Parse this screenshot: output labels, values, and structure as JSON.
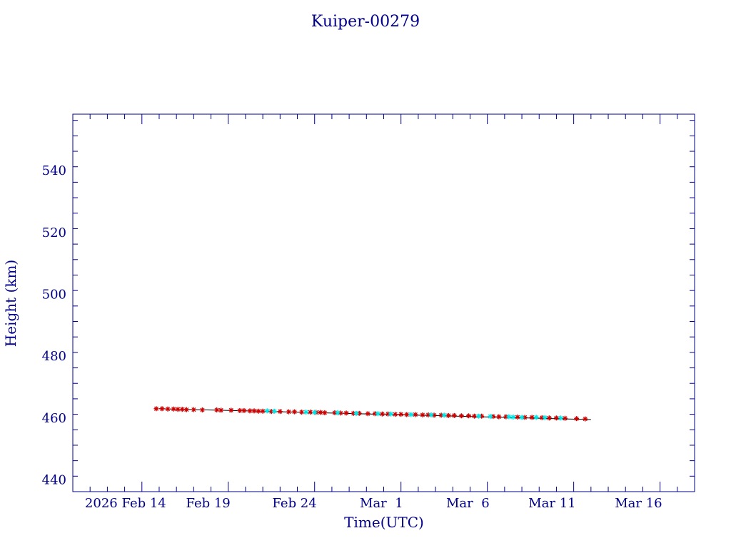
{
  "chart_data": {
    "type": "scatter",
    "title": "Kuiper-00279",
    "xlabel": "Time(UTC)",
    "ylabel": "Height (km)",
    "x_axis": {
      "start": "2026-02-10",
      "end": "2026-03-18",
      "ticks": [
        {
          "date": "2026-02-14",
          "label": "2026 Feb 14"
        },
        {
          "date": "2026-02-19",
          "label": "Feb 19"
        },
        {
          "date": "2026-02-24",
          "label": "Feb 24"
        },
        {
          "date": "2026-03-01",
          "label": "Mar  1"
        },
        {
          "date": "2026-03-06",
          "label": "Mar  6"
        },
        {
          "date": "2026-03-11",
          "label": "Mar 11"
        },
        {
          "date": "2026-03-16",
          "label": "Mar 16"
        }
      ]
    },
    "ylim": [
      436,
      558
    ],
    "yticks": [
      440,
      460,
      480,
      500,
      520,
      540
    ],
    "grid": false,
    "fit_line": {
      "x": [
        "2026-02-15",
        "2026-03-12"
      ],
      "y": [
        462.8,
        459.3
      ]
    },
    "series": [
      {
        "color": "#cc0000",
        "marker": "star",
        "x": [
          "2026-02-14T20:00",
          "2026-02-15T04:00",
          "2026-02-15T12:00",
          "2026-02-15T20:00",
          "2026-02-16T02:00",
          "2026-02-16T08:00",
          "2026-02-16T14:00",
          "2026-02-17T00:00",
          "2026-02-17T12:00",
          "2026-02-18T08:00",
          "2026-02-18T14:00",
          "2026-02-19T04:00",
          "2026-02-19T16:00",
          "2026-02-19T22:00",
          "2026-02-20T06:00",
          "2026-02-20T12:00",
          "2026-02-20T18:00",
          "2026-02-21T00:00",
          "2026-02-21T12:00",
          "2026-02-22T00:00",
          "2026-02-22T12:00",
          "2026-02-22T20:00",
          "2026-02-23T06:00",
          "2026-02-23T18:00",
          "2026-02-24T02:00",
          "2026-02-24T08:00",
          "2026-02-24T14:00",
          "2026-02-25T04:00",
          "2026-02-25T12:00",
          "2026-02-25T20:00",
          "2026-02-26T06:00",
          "2026-02-26T14:00",
          "2026-02-27T02:00",
          "2026-02-27T12:00",
          "2026-02-27T22:00",
          "2026-02-28T06:00",
          "2026-02-28T16:00",
          "2026-03-01T00:00",
          "2026-03-01T08:00",
          "2026-03-01T20:00",
          "2026-03-02T06:00",
          "2026-03-02T14:00",
          "2026-03-02T22:00",
          "2026-03-03T08:00",
          "2026-03-03T18:00",
          "2026-03-04T02:00",
          "2026-03-04T12:00",
          "2026-03-04T22:00",
          "2026-03-05T06:00",
          "2026-03-05T16:00",
          "2026-03-06T08:00",
          "2026-03-06T16:00",
          "2026-03-07T02:00",
          "2026-03-07T18:00",
          "2026-03-08T04:00",
          "2026-03-08T14:00",
          "2026-03-09T04:00",
          "2026-03-09T14:00",
          "2026-03-10T00:00",
          "2026-03-10T12:00",
          "2026-03-11T04:00",
          "2026-03-11T16:00"
        ],
        "y": [
          462.8,
          462.8,
          462.7,
          462.7,
          462.6,
          462.6,
          462.5,
          462.5,
          462.4,
          462.4,
          462.3,
          462.3,
          462.2,
          462.2,
          462.1,
          462.1,
          462.0,
          462.0,
          461.9,
          461.9,
          461.8,
          461.8,
          461.7,
          461.7,
          461.6,
          461.6,
          461.5,
          461.5,
          461.4,
          461.4,
          461.3,
          461.3,
          461.2,
          461.2,
          461.1,
          461.1,
          461.0,
          461.0,
          460.9,
          460.9,
          460.8,
          460.8,
          460.7,
          460.7,
          460.6,
          460.6,
          460.5,
          460.5,
          460.4,
          460.4,
          460.3,
          460.2,
          460.2,
          460.1,
          460.0,
          460.0,
          459.9,
          459.8,
          459.8,
          459.7,
          459.6,
          459.5
        ]
      },
      {
        "color": "#00e5e5",
        "marker": "star",
        "x": [
          "2026-02-21T06:00",
          "2026-02-21T16:00",
          "2026-02-23T12:00",
          "2026-02-24T00:00",
          "2026-02-25T08:00",
          "2026-02-26T10:00",
          "2026-02-27T16:00",
          "2026-02-28T10:00",
          "2026-03-01T14:00",
          "2026-03-02T18:00",
          "2026-03-03T12:00",
          "2026-03-05T12:00",
          "2026-03-06T04:00",
          "2026-03-07T06:00",
          "2026-03-07T12:00",
          "2026-03-08T00:00",
          "2026-03-08T20:00",
          "2026-03-09T08:00",
          "2026-03-10T06:00"
        ],
        "y": [
          462.1,
          462.0,
          461.7,
          461.6,
          461.5,
          461.3,
          461.2,
          461.1,
          460.9,
          460.8,
          460.7,
          460.4,
          460.3,
          460.2,
          460.1,
          460.0,
          460.0,
          459.9,
          459.8
        ]
      }
    ]
  }
}
